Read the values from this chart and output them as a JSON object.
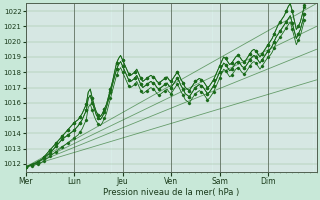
{
  "xlabel": "Pression niveau de la mer( hPa )",
  "bg_color": "#c8e8d8",
  "plot_bg_color": "#d8ede8",
  "line_color": "#1a6b1a",
  "dark_line_color": "#0a4a0a",
  "ylim": [
    1011.5,
    1022.5
  ],
  "xlim": [
    0,
    144
  ],
  "yticks": [
    1012,
    1013,
    1014,
    1015,
    1016,
    1017,
    1018,
    1019,
    1020,
    1021,
    1022
  ],
  "day_labels": [
    "Mer",
    "Lun",
    "Jeu",
    "Ven",
    "Sam",
    "Dim"
  ],
  "day_positions": [
    0,
    24,
    48,
    72,
    96,
    120,
    144
  ],
  "trend_lines": [
    {
      "x0": 0,
      "y0": 1011.8,
      "x1": 144,
      "y1": 1022.5
    },
    {
      "x0": 0,
      "y0": 1011.8,
      "x1": 144,
      "y1": 1021.0
    },
    {
      "x0": 0,
      "y0": 1011.8,
      "x1": 144,
      "y1": 1019.5
    },
    {
      "x0": 0,
      "y0": 1011.8,
      "x1": 144,
      "y1": 1017.5
    }
  ],
  "series": [
    [
      1011.8,
      1011.85,
      1011.9,
      1011.95,
      1012.0,
      1012.05,
      1012.1,
      1012.2,
      1012.3,
      1012.45,
      1012.6,
      1012.75,
      1012.9,
      1013.05,
      1013.2,
      1013.35,
      1013.5,
      1013.65,
      1013.8,
      1013.95,
      1014.1,
      1014.25,
      1014.4,
      1014.55,
      1014.7,
      1014.8,
      1014.9,
      1015.1,
      1015.3,
      1015.6,
      1015.9,
      1016.7,
      1016.9,
      1016.3,
      1015.8,
      1015.4,
      1015.2,
      1015.1,
      1015.3,
      1015.6,
      1015.9,
      1016.4,
      1016.9,
      1017.4,
      1018.0,
      1018.6,
      1018.9,
      1019.1,
      1018.8,
      1018.5,
      1018.2,
      1017.9,
      1017.8,
      1017.9,
      1018.0,
      1018.2,
      1017.9,
      1017.6,
      1017.4,
      1017.5,
      1017.6,
      1017.7,
      1017.8,
      1017.7,
      1017.6,
      1017.4,
      1017.3,
      1017.4,
      1017.5,
      1017.6,
      1017.7,
      1017.5,
      1017.4,
      1017.6,
      1017.8,
      1018.0,
      1017.8,
      1017.5,
      1017.3,
      1017.0,
      1016.9,
      1016.8,
      1017.0,
      1017.2,
      1017.4,
      1017.5,
      1017.6,
      1017.5,
      1017.4,
      1017.2,
      1017.0,
      1017.1,
      1017.3,
      1017.5,
      1017.8,
      1018.1,
      1018.4,
      1018.7,
      1019.0,
      1018.9,
      1018.7,
      1018.5,
      1018.6,
      1018.8,
      1019.0,
      1019.1,
      1019.0,
      1018.8,
      1018.7,
      1018.8,
      1019.0,
      1019.2,
      1019.4,
      1019.5,
      1019.4,
      1019.2,
      1019.0,
      1019.2,
      1019.4,
      1019.6,
      1019.8,
      1020.0,
      1020.2,
      1020.5,
      1020.8,
      1021.1,
      1021.3,
      1021.5,
      1021.7,
      1022.0,
      1022.3,
      1022.5,
      1022.0,
      1021.4,
      1020.8,
      1021.0,
      1021.3,
      1021.8,
      1022.4
    ],
    [
      1011.8,
      1011.85,
      1011.9,
      1011.95,
      1012.0,
      1012.05,
      1012.1,
      1012.2,
      1012.3,
      1012.45,
      1012.6,
      1012.75,
      1012.9,
      1013.05,
      1013.2,
      1013.35,
      1013.5,
      1013.65,
      1013.8,
      1013.95,
      1014.1,
      1014.25,
      1014.4,
      1014.55,
      1014.7,
      1014.8,
      1014.9,
      1015.1,
      1015.3,
      1015.6,
      1015.9,
      1016.7,
      1016.9,
      1016.3,
      1015.8,
      1015.4,
      1015.2,
      1015.1,
      1015.3,
      1015.6,
      1015.9,
      1016.4,
      1016.9,
      1017.4,
      1018.0,
      1018.6,
      1018.9,
      1019.1,
      1018.8,
      1018.5,
      1018.2,
      1017.9,
      1017.8,
      1017.9,
      1018.0,
      1018.2,
      1017.9,
      1017.6,
      1017.4,
      1017.5,
      1017.6,
      1017.7,
      1017.8,
      1017.7,
      1017.6,
      1017.4,
      1017.3,
      1017.4,
      1017.5,
      1017.6,
      1017.7,
      1017.5,
      1017.4,
      1017.6,
      1017.8,
      1018.0,
      1017.8,
      1017.5,
      1017.3,
      1017.0,
      1016.9,
      1016.8,
      1017.0,
      1017.2,
      1017.4,
      1017.5,
      1017.6,
      1017.5,
      1017.4,
      1017.2,
      1017.0,
      1017.1,
      1017.3,
      1017.5,
      1017.8,
      1018.1,
      1018.4,
      1018.7,
      1019.0,
      1018.9,
      1018.7,
      1018.5,
      1018.6,
      1018.8,
      1019.0,
      1019.1,
      1019.0,
      1018.8,
      1018.7,
      1018.8,
      1019.0,
      1019.2,
      1019.4,
      1019.5,
      1019.4,
      1019.2,
      1019.0,
      1019.2,
      1019.4,
      1019.6,
      1019.8,
      1020.0,
      1020.2,
      1020.5,
      1020.8,
      1021.1,
      1021.3,
      1021.5,
      1021.7,
      1022.0,
      1022.3,
      1022.5,
      1022.0,
      1021.4,
      1020.8,
      1021.0,
      1021.3,
      1021.8,
      1022.3
    ],
    [
      1011.8,
      1011.85,
      1011.9,
      1011.95,
      1012.0,
      1012.05,
      1012.1,
      1012.2,
      1012.3,
      1012.4,
      1012.5,
      1012.6,
      1012.7,
      1012.85,
      1013.0,
      1013.15,
      1013.3,
      1013.45,
      1013.6,
      1013.7,
      1013.8,
      1013.9,
      1014.0,
      1014.1,
      1014.2,
      1014.35,
      1014.5,
      1014.7,
      1014.9,
      1015.2,
      1015.5,
      1016.3,
      1016.5,
      1016.0,
      1015.6,
      1015.2,
      1015.0,
      1014.9,
      1015.1,
      1015.4,
      1015.7,
      1016.2,
      1016.7,
      1017.2,
      1017.7,
      1018.2,
      1018.5,
      1018.7,
      1018.4,
      1018.1,
      1017.8,
      1017.5,
      1017.4,
      1017.5,
      1017.6,
      1017.8,
      1017.5,
      1017.2,
      1017.0,
      1017.1,
      1017.2,
      1017.3,
      1017.4,
      1017.3,
      1017.2,
      1017.0,
      1016.9,
      1017.0,
      1017.1,
      1017.2,
      1017.3,
      1017.1,
      1017.0,
      1017.2,
      1017.4,
      1017.6,
      1017.4,
      1017.1,
      1016.9,
      1016.6,
      1016.5,
      1016.4,
      1016.6,
      1016.8,
      1017.0,
      1017.1,
      1017.2,
      1017.1,
      1017.0,
      1016.8,
      1016.6,
      1016.7,
      1016.9,
      1017.1,
      1017.4,
      1017.7,
      1018.0,
      1018.3,
      1018.6,
      1018.5,
      1018.3,
      1018.1,
      1018.2,
      1018.4,
      1018.6,
      1018.7,
      1018.6,
      1018.4,
      1018.3,
      1018.4,
      1018.6,
      1018.8,
      1019.0,
      1019.1,
      1019.0,
      1018.8,
      1018.6,
      1018.8,
      1019.0,
      1019.2,
      1019.4,
      1019.5,
      1019.7,
      1020.0,
      1020.3,
      1020.5,
      1020.7,
      1020.9,
      1021.1,
      1021.3,
      1021.5,
      1021.7,
      1021.2,
      1020.7,
      1020.2,
      1020.5,
      1020.8,
      1021.3,
      1021.8
    ],
    [
      1011.8,
      1011.85,
      1011.9,
      1011.95,
      1012.0,
      1012.05,
      1012.1,
      1012.2,
      1012.3,
      1012.4,
      1012.5,
      1012.6,
      1012.7,
      1012.85,
      1013.0,
      1013.15,
      1013.3,
      1013.45,
      1013.6,
      1013.7,
      1013.8,
      1013.9,
      1014.0,
      1014.1,
      1014.2,
      1014.35,
      1014.5,
      1014.7,
      1014.9,
      1015.2,
      1015.5,
      1016.3,
      1016.5,
      1016.0,
      1015.6,
      1015.2,
      1015.0,
      1014.9,
      1015.1,
      1015.4,
      1015.7,
      1016.2,
      1016.7,
      1017.2,
      1017.7,
      1018.2,
      1018.5,
      1018.7,
      1018.4,
      1018.1,
      1017.8,
      1017.5,
      1017.4,
      1017.5,
      1017.6,
      1017.8,
      1017.5,
      1017.2,
      1017.0,
      1017.1,
      1017.2,
      1017.3,
      1017.4,
      1017.3,
      1017.2,
      1017.0,
      1016.9,
      1017.0,
      1017.1,
      1017.2,
      1017.3,
      1017.1,
      1017.0,
      1017.2,
      1017.4,
      1017.6,
      1017.4,
      1017.1,
      1016.9,
      1016.6,
      1016.5,
      1016.4,
      1016.6,
      1016.8,
      1017.0,
      1017.1,
      1017.2,
      1017.1,
      1017.0,
      1016.8,
      1016.6,
      1016.7,
      1016.9,
      1017.1,
      1017.4,
      1017.7,
      1018.0,
      1018.3,
      1018.6,
      1018.5,
      1018.3,
      1018.1,
      1018.2,
      1018.4,
      1018.6,
      1018.7,
      1018.6,
      1018.4,
      1018.3,
      1018.4,
      1018.6,
      1018.8,
      1019.0,
      1019.1,
      1019.0,
      1018.8,
      1018.6,
      1018.8,
      1019.0,
      1019.2,
      1019.4,
      1019.5,
      1019.7,
      1020.0,
      1020.3,
      1020.5,
      1020.7,
      1020.9,
      1021.1,
      1021.3,
      1021.5,
      1021.7,
      1021.2,
      1020.7,
      1020.2,
      1020.5,
      1020.8,
      1021.3,
      1021.8
    ],
    [
      1011.8,
      1011.83,
      1011.86,
      1011.89,
      1011.92,
      1011.95,
      1011.98,
      1012.01,
      1012.1,
      1012.2,
      1012.3,
      1012.4,
      1012.5,
      1012.6,
      1012.7,
      1012.8,
      1012.9,
      1013.0,
      1013.1,
      1013.2,
      1013.3,
      1013.4,
      1013.5,
      1013.6,
      1013.7,
      1013.8,
      1013.9,
      1014.1,
      1014.3,
      1014.6,
      1014.9,
      1015.7,
      1015.9,
      1015.5,
      1015.1,
      1014.8,
      1014.6,
      1014.5,
      1014.7,
      1015.0,
      1015.3,
      1015.8,
      1016.3,
      1016.8,
      1017.3,
      1017.8,
      1018.1,
      1018.3,
      1018.0,
      1017.7,
      1017.4,
      1017.1,
      1017.0,
      1017.1,
      1017.2,
      1017.4,
      1017.1,
      1016.8,
      1016.6,
      1016.7,
      1016.8,
      1016.9,
      1017.0,
      1016.9,
      1016.8,
      1016.6,
      1016.5,
      1016.6,
      1016.7,
      1016.8,
      1016.9,
      1016.7,
      1016.6,
      1016.8,
      1017.0,
      1017.2,
      1017.0,
      1016.7,
      1016.5,
      1016.2,
      1016.1,
      1016.0,
      1016.2,
      1016.4,
      1016.6,
      1016.7,
      1016.8,
      1016.7,
      1016.6,
      1016.4,
      1016.2,
      1016.3,
      1016.5,
      1016.7,
      1017.0,
      1017.3,
      1017.6,
      1017.9,
      1018.2,
      1018.1,
      1017.9,
      1017.7,
      1017.8,
      1018.0,
      1018.2,
      1018.3,
      1018.2,
      1018.0,
      1017.9,
      1018.0,
      1018.2,
      1018.4,
      1018.6,
      1018.7,
      1018.6,
      1018.4,
      1018.2,
      1018.4,
      1018.6,
      1018.8,
      1019.0,
      1019.1,
      1019.3,
      1019.6,
      1019.9,
      1020.1,
      1020.3,
      1020.5,
      1020.7,
      1020.9,
      1021.1,
      1021.3,
      1020.8,
      1020.3,
      1019.8,
      1020.1,
      1020.4,
      1020.9,
      1021.4
    ]
  ],
  "marker_size": 1.2,
  "line_width": 0.6
}
